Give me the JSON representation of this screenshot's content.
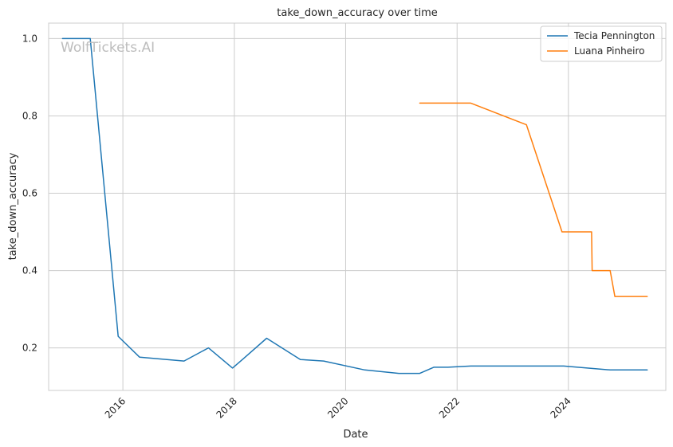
{
  "chart_data": {
    "type": "line",
    "title": "take_down_accuracy over time",
    "xlabel": "Date",
    "ylabel": "take_down_accuracy",
    "watermark": "WolfTickets.AI",
    "xlim": [
      "2014-09-01",
      "2025-10-01"
    ],
    "ylim": [
      0.09,
      1.04
    ],
    "x_ticks": [
      "2016-01-01",
      "2018-01-01",
      "2020-01-01",
      "2022-01-01",
      "2024-01-01"
    ],
    "x_tick_labels": [
      "2016",
      "2018",
      "2020",
      "2022",
      "2024"
    ],
    "y_ticks": [
      0.2,
      0.4,
      0.6,
      0.8,
      1.0
    ],
    "y_tick_labels": [
      "0.2",
      "0.4",
      "0.6",
      "0.8",
      "1.0"
    ],
    "grid": true,
    "legend_position": "top-right",
    "series": [
      {
        "name": "Tecia Pennington",
        "color": "#1f77b4",
        "points": [
          [
            "2014-12-01",
            1.0
          ],
          [
            "2015-06-01",
            1.0
          ],
          [
            "2015-12-01",
            0.23
          ],
          [
            "2016-04-20",
            0.176
          ],
          [
            "2017-02-05",
            0.166
          ],
          [
            "2017-07-15",
            0.2
          ],
          [
            "2017-12-20",
            0.148
          ],
          [
            "2018-03-01",
            0.172
          ],
          [
            "2018-08-01",
            0.225
          ],
          [
            "2019-03-10",
            0.17
          ],
          [
            "2019-08-10",
            0.166
          ],
          [
            "2020-05-05",
            0.143
          ],
          [
            "2020-12-15",
            0.134
          ],
          [
            "2021-05-01",
            0.134
          ],
          [
            "2021-08-01",
            0.15
          ],
          [
            "2021-11-01",
            0.15
          ],
          [
            "2022-04-01",
            0.153
          ],
          [
            "2023-12-01",
            0.153
          ],
          [
            "2024-10-01",
            0.143
          ],
          [
            "2025-06-01",
            0.143
          ]
        ]
      },
      {
        "name": "Luana Pinheiro",
        "color": "#ff7f0e",
        "points": [
          [
            "2021-05-01",
            0.833
          ],
          [
            "2022-04-01",
            0.833
          ],
          [
            "2023-04-01",
            0.777
          ],
          [
            "2023-11-20",
            0.5
          ],
          [
            "2024-06-01",
            0.5
          ],
          [
            "2024-06-05",
            0.4
          ],
          [
            "2024-10-01",
            0.4
          ],
          [
            "2024-11-01",
            0.333
          ],
          [
            "2025-06-01",
            0.333
          ]
        ]
      }
    ]
  }
}
